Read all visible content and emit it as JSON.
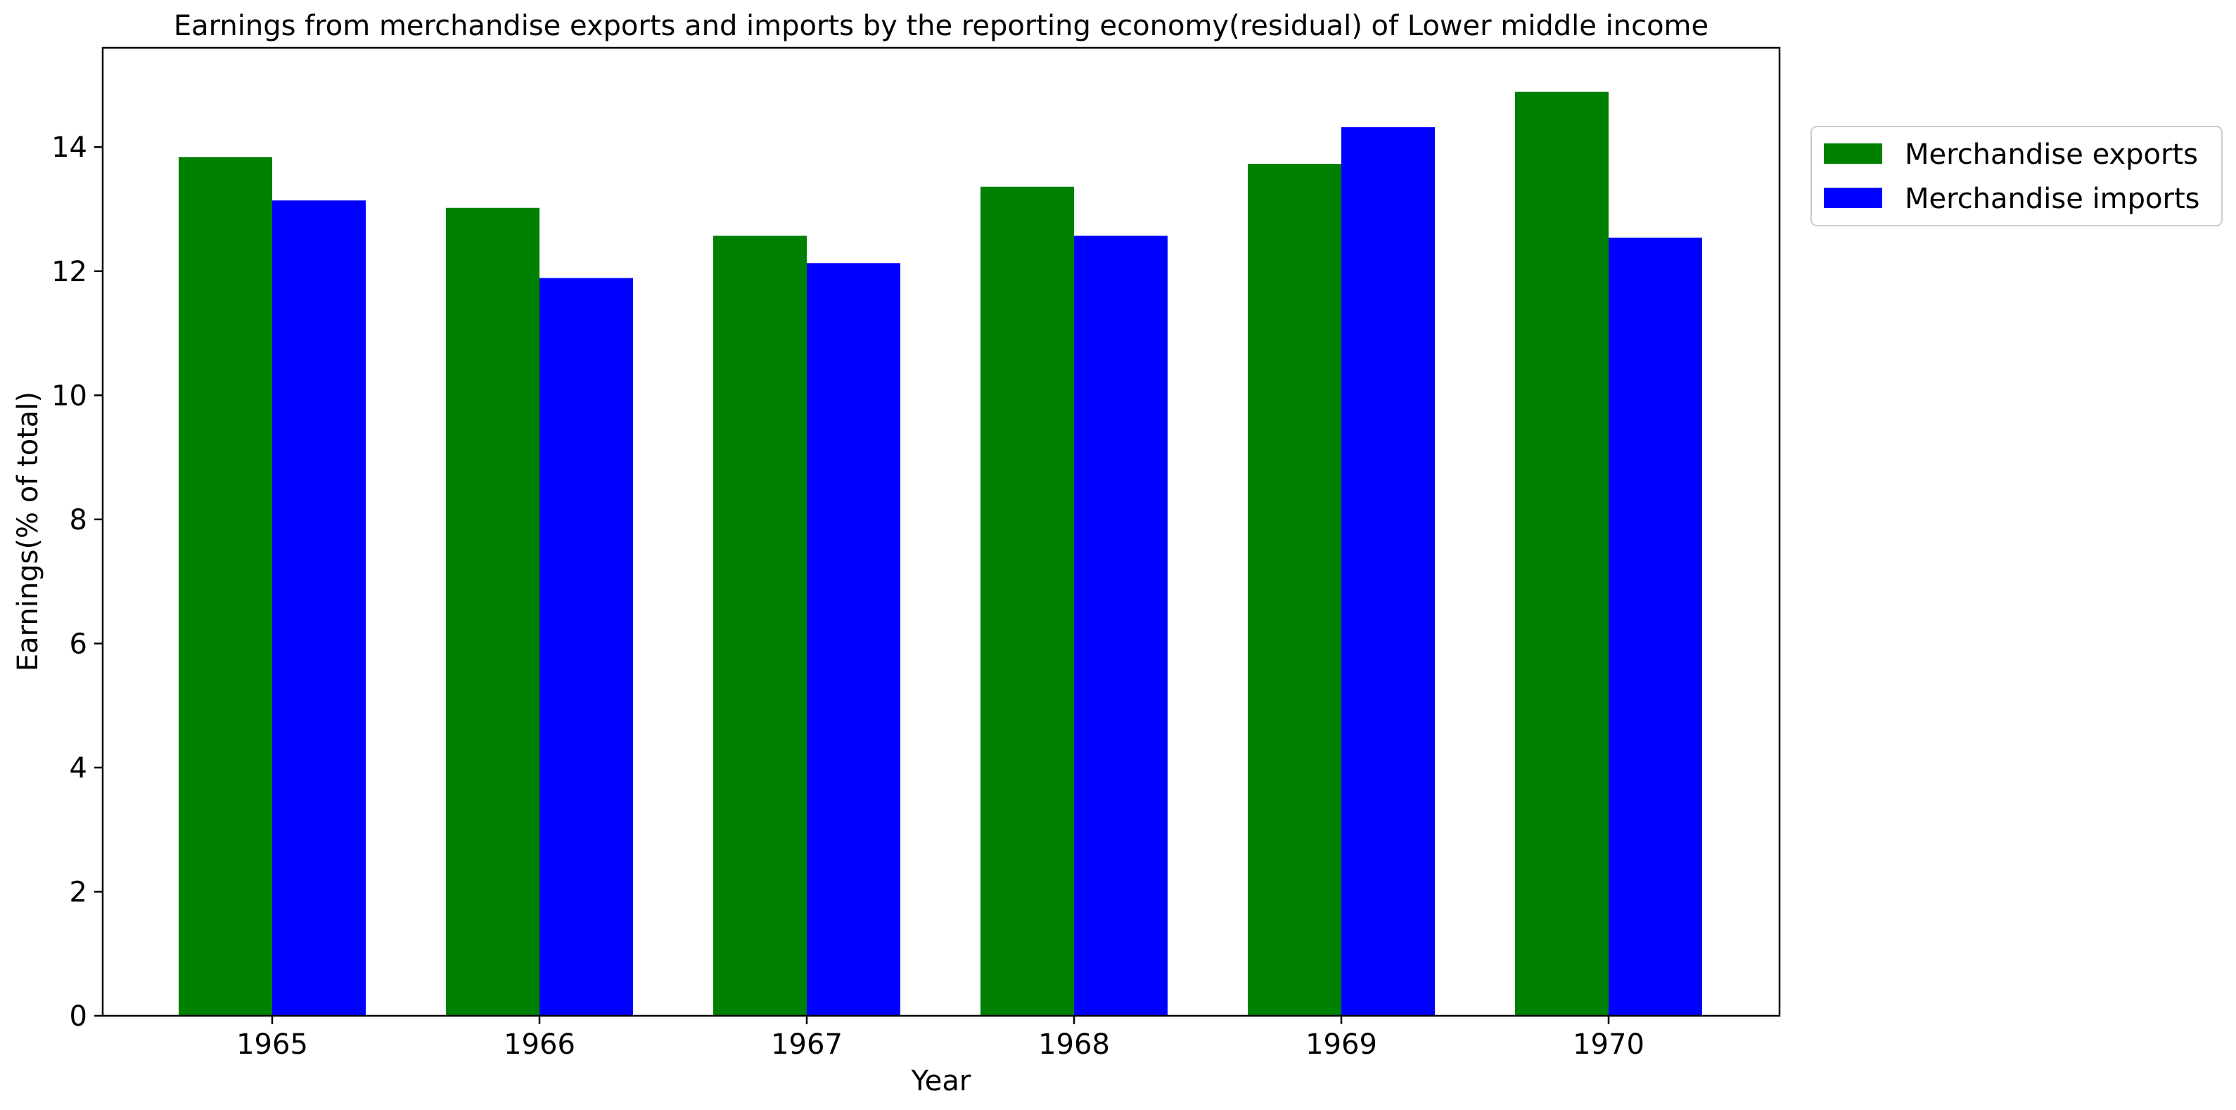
{
  "chart_data": {
    "type": "bar",
    "title": "Earnings from merchandise exports and imports by the reporting economy(residual) of Lower middle income",
    "xlabel": "Year",
    "ylabel": "Earnings(% of total)",
    "categories": [
      "1965",
      "1966",
      "1967",
      "1968",
      "1969",
      "1970"
    ],
    "series": [
      {
        "name": "Merchandise exports",
        "color": "#008000",
        "values": [
          13.84,
          13.02,
          12.57,
          13.36,
          13.73,
          14.89
        ]
      },
      {
        "name": "Merchandise imports",
        "color": "#0000ff",
        "values": [
          13.14,
          11.89,
          12.13,
          12.57,
          14.32,
          12.54
        ]
      }
    ],
    "ylim": [
      0,
      15.6
    ],
    "yticks": [
      0,
      2,
      4,
      6,
      8,
      10,
      12,
      14
    ],
    "grid": false,
    "legend_position": "outside-top-right"
  }
}
